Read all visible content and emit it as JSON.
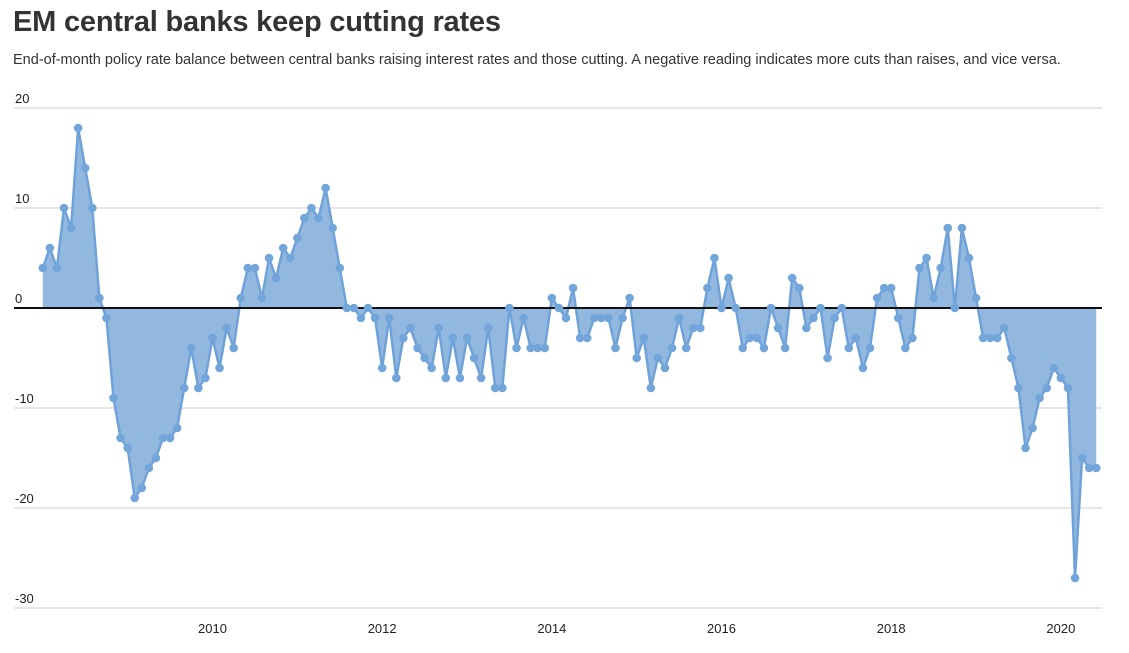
{
  "chart_data": {
    "type": "area",
    "title": "EM central banks keep cutting rates",
    "subtitle": "End-of-month policy rate balance between central banks raising interest rates and those cutting. A negative reading indicates more cuts than raises, and vice versa.",
    "xlabel": "",
    "ylabel": "",
    "ylim": [
      -30,
      20
    ],
    "xlim": [
      "2008-01",
      "2020-07"
    ],
    "yticks": [
      20,
      10,
      0,
      -10,
      -20,
      -30
    ],
    "xticks": [
      "2010",
      "2012",
      "2014",
      "2016",
      "2018",
      "2020"
    ],
    "grid": true,
    "series": [
      {
        "start": "2008-01",
        "values": [
          4,
          6,
          4,
          10,
          8,
          18,
          14,
          10,
          1,
          -1,
          -9,
          -13,
          -14,
          -19,
          -18,
          -16,
          -15,
          -13,
          -13,
          -12,
          -8,
          -4,
          -8,
          -7,
          -3,
          -6,
          -2,
          -4,
          1,
          4,
          4,
          1,
          5,
          3,
          6,
          5,
          7,
          9,
          10,
          9,
          12,
          8,
          4,
          0,
          0,
          -1,
          0,
          -1,
          -6,
          -1,
          -7,
          -3,
          -2,
          -4,
          -5,
          -6,
          -2,
          -7,
          -3,
          -7,
          -3,
          -5,
          -7,
          -2,
          -8,
          -8,
          0,
          -4,
          -1,
          -4,
          -4,
          -4,
          1,
          0,
          -1,
          2,
          -3,
          -3,
          -1,
          -1,
          -1,
          -4,
          -1,
          1,
          -5,
          -3,
          -8,
          -5,
          -6,
          -4,
          -1,
          -4,
          -2,
          -2,
          2,
          5,
          0,
          3,
          0,
          -4,
          -3,
          -3,
          -4,
          0,
          -2,
          -4,
          3,
          2,
          -2,
          -1,
          0,
          -5,
          -1,
          0,
          -4,
          -3,
          -6,
          -4,
          1,
          2,
          2,
          -1,
          -4,
          -3,
          4,
          5,
          1,
          4,
          8,
          0,
          8,
          5,
          1,
          -3,
          -3,
          -3,
          -2,
          -5,
          -8,
          -14,
          -12,
          -9,
          -8,
          -6,
          -7,
          -8,
          -27,
          -15,
          -16,
          -16
        ]
      }
    ]
  }
}
